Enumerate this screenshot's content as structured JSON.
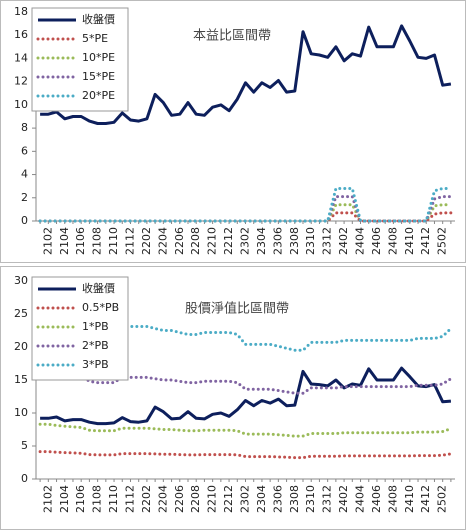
{
  "chart_data": [
    {
      "type": "line",
      "title": "本益比區間帶",
      "categories": [
        null,
        "2102",
        null,
        "2104",
        null,
        "2106",
        null,
        "2108",
        null,
        "2110",
        null,
        "2112",
        null,
        "2202",
        null,
        "2204",
        null,
        "2206",
        null,
        "2208",
        null,
        "2210",
        null,
        "2212",
        null,
        "2302",
        null,
        "2304",
        null,
        "2306",
        null,
        "2308",
        null,
        "2310",
        null,
        "2312",
        null,
        "2402",
        null,
        "2404",
        null,
        "2406",
        null,
        "2408",
        null,
        "2410",
        null,
        "2412",
        null,
        "2502",
        null
      ],
      "ylim": [
        0,
        18
      ],
      "yticks": [
        0,
        2,
        4,
        6,
        8,
        10,
        12,
        14,
        16,
        18
      ],
      "series": [
        {
          "name": "收盤價",
          "color": "#0d1f5c",
          "style": "solid",
          "values": [
            9.2,
            9.2,
            9.4,
            8.8,
            9.0,
            9.0,
            8.6,
            8.4,
            8.4,
            8.5,
            9.3,
            8.7,
            8.6,
            8.8,
            10.9,
            10.2,
            9.1,
            9.2,
            10.2,
            9.2,
            9.1,
            9.8,
            10.0,
            9.5,
            10.5,
            11.9,
            11.1,
            11.9,
            11.5,
            12.1,
            11.1,
            11.2,
            16.3,
            14.4,
            14.3,
            14.1,
            15.0,
            13.8,
            14.4,
            14.2,
            16.7,
            15.0,
            15.0,
            15.0,
            16.8,
            15.5,
            14.1,
            14.0,
            14.3,
            11.7,
            11.8
          ]
        },
        {
          "name": "5*PE",
          "color": "#c0504d",
          "style": "dotted",
          "values": [
            0,
            0,
            0,
            0,
            0,
            0,
            0,
            0,
            0,
            0,
            0,
            0,
            0,
            0,
            0,
            0,
            0,
            0,
            0,
            0,
            0,
            0,
            0,
            0,
            0,
            0,
            0,
            0,
            0,
            0,
            0,
            0,
            0,
            0,
            0,
            0,
            0.7,
            0.7,
            0.7,
            0,
            0,
            0,
            0,
            0,
            0,
            0,
            0,
            0,
            0.6,
            0.7,
            0.7
          ]
        },
        {
          "name": "10*PE",
          "color": "#9bbb59",
          "style": "dotted",
          "values": [
            0,
            0,
            0,
            0,
            0,
            0,
            0,
            0,
            0,
            0,
            0,
            0,
            0,
            0,
            0,
            0,
            0,
            0,
            0,
            0,
            0,
            0,
            0,
            0,
            0,
            0,
            0,
            0,
            0,
            0,
            0,
            0,
            0,
            0,
            0,
            0,
            1.4,
            1.4,
            1.4,
            0,
            0,
            0,
            0,
            0,
            0,
            0,
            0,
            0,
            1.3,
            1.4,
            1.4
          ]
        },
        {
          "name": "15*PE",
          "color": "#8064a2",
          "style": "dotted",
          "values": [
            0,
            0,
            0,
            0,
            0,
            0,
            0,
            0,
            0,
            0,
            0,
            0,
            0,
            0,
            0,
            0,
            0,
            0,
            0,
            0,
            0,
            0,
            0,
            0,
            0,
            0,
            0,
            0,
            0,
            0,
            0,
            0,
            0,
            0,
            0,
            0,
            2.1,
            2.1,
            2.1,
            0,
            0,
            0,
            0,
            0,
            0,
            0,
            0,
            0,
            1.9,
            2.1,
            2.1
          ]
        },
        {
          "name": "20*PE",
          "color": "#4bacc6",
          "style": "dotted",
          "values": [
            0,
            0,
            0,
            0,
            0,
            0,
            0,
            0,
            0,
            0,
            0,
            0,
            0,
            0,
            0,
            0,
            0,
            0,
            0,
            0,
            0,
            0,
            0,
            0,
            0,
            0,
            0,
            0,
            0,
            0,
            0,
            0,
            0,
            0,
            0,
            0,
            2.8,
            2.8,
            2.8,
            0,
            0,
            0,
            0,
            0,
            0,
            0,
            0,
            0,
            2.6,
            2.8,
            2.8
          ]
        }
      ]
    },
    {
      "type": "line",
      "title": "股價淨值比區間帶",
      "categories": [
        null,
        "2102",
        null,
        "2104",
        null,
        "2106",
        null,
        "2108",
        null,
        "2110",
        null,
        "2112",
        null,
        "2202",
        null,
        "2204",
        null,
        "2206",
        null,
        "2208",
        null,
        "2210",
        null,
        "2212",
        null,
        "2302",
        null,
        "2304",
        null,
        "2306",
        null,
        "2308",
        null,
        "2310",
        null,
        "2312",
        null,
        "2402",
        null,
        "2404",
        null,
        "2406",
        null,
        "2408",
        null,
        "2410",
        null,
        "2412",
        null,
        "2502",
        null
      ],
      "ylim": [
        0,
        30
      ],
      "yticks": [
        0,
        5,
        10,
        15,
        20,
        25,
        30
      ],
      "series": [
        {
          "name": "收盤價",
          "color": "#0d1f5c",
          "style": "solid",
          "values": [
            9.2,
            9.2,
            9.4,
            8.8,
            9.0,
            9.0,
            8.6,
            8.4,
            8.4,
            8.5,
            9.3,
            8.7,
            8.6,
            8.8,
            10.9,
            10.2,
            9.1,
            9.2,
            10.2,
            9.2,
            9.1,
            9.8,
            10.0,
            9.5,
            10.5,
            11.9,
            11.1,
            11.9,
            11.5,
            12.1,
            11.1,
            11.2,
            16.3,
            14.4,
            14.3,
            14.1,
            15.0,
            13.8,
            14.4,
            14.2,
            16.7,
            15.0,
            15.0,
            15.0,
            16.8,
            15.5,
            14.1,
            14.0,
            14.3,
            11.7,
            11.8
          ]
        },
        {
          "name": "0.5*PB",
          "color": "#c0504d",
          "style": "dotted",
          "values": [
            4.15,
            4.15,
            4.05,
            4.0,
            3.95,
            3.9,
            3.7,
            3.65,
            3.65,
            3.65,
            3.85,
            3.85,
            3.85,
            3.85,
            3.8,
            3.75,
            3.75,
            3.7,
            3.65,
            3.65,
            3.7,
            3.7,
            3.7,
            3.7,
            3.65,
            3.4,
            3.4,
            3.4,
            3.4,
            3.35,
            3.3,
            3.25,
            3.25,
            3.45,
            3.45,
            3.45,
            3.45,
            3.5,
            3.5,
            3.5,
            3.5,
            3.5,
            3.5,
            3.5,
            3.5,
            3.5,
            3.55,
            3.55,
            3.55,
            3.6,
            3.8
          ]
        },
        {
          "name": "1*PB",
          "color": "#9bbb59",
          "style": "dotted",
          "values": [
            8.3,
            8.3,
            8.1,
            8.0,
            7.9,
            7.8,
            7.4,
            7.3,
            7.3,
            7.3,
            7.7,
            7.7,
            7.7,
            7.7,
            7.6,
            7.5,
            7.5,
            7.4,
            7.3,
            7.3,
            7.4,
            7.4,
            7.4,
            7.4,
            7.3,
            6.8,
            6.8,
            6.8,
            6.8,
            6.7,
            6.6,
            6.5,
            6.5,
            6.9,
            6.9,
            6.9,
            6.9,
            7.0,
            7.0,
            7.0,
            7.0,
            7.0,
            7.0,
            7.0,
            7.0,
            7.0,
            7.1,
            7.1,
            7.1,
            7.2,
            7.6
          ]
        },
        {
          "name": "2*PB",
          "color": "#8064a2",
          "style": "dotted",
          "values": [
            16.6,
            16.6,
            16.2,
            16.0,
            15.8,
            15.6,
            14.8,
            14.6,
            14.6,
            14.6,
            15.4,
            15.4,
            15.4,
            15.4,
            15.2,
            15.0,
            15.0,
            14.8,
            14.6,
            14.6,
            14.8,
            14.8,
            14.8,
            14.8,
            14.6,
            13.6,
            13.6,
            13.6,
            13.6,
            13.4,
            13.2,
            13.0,
            13.0,
            13.8,
            13.8,
            13.8,
            13.8,
            14.0,
            14.0,
            14.0,
            14.0,
            14.0,
            14.0,
            14.0,
            14.0,
            14.0,
            14.2,
            14.2,
            14.2,
            14.4,
            15.2
          ]
        },
        {
          "name": "3*PB",
          "color": "#4bacc6",
          "style": "dotted",
          "values": [
            24.9,
            24.9,
            24.3,
            24.0,
            23.7,
            23.4,
            22.2,
            21.9,
            21.9,
            21.9,
            23.1,
            23.1,
            23.1,
            23.1,
            22.8,
            22.5,
            22.5,
            22.2,
            21.9,
            21.9,
            22.2,
            22.2,
            22.2,
            22.2,
            21.9,
            20.4,
            20.4,
            20.4,
            20.4,
            20.1,
            19.8,
            19.5,
            19.5,
            20.7,
            20.7,
            20.7,
            20.7,
            21.0,
            21.0,
            21.0,
            21.0,
            21.0,
            21.0,
            21.0,
            21.0,
            21.0,
            21.3,
            21.3,
            21.3,
            21.6,
            22.8
          ]
        }
      ]
    }
  ]
}
